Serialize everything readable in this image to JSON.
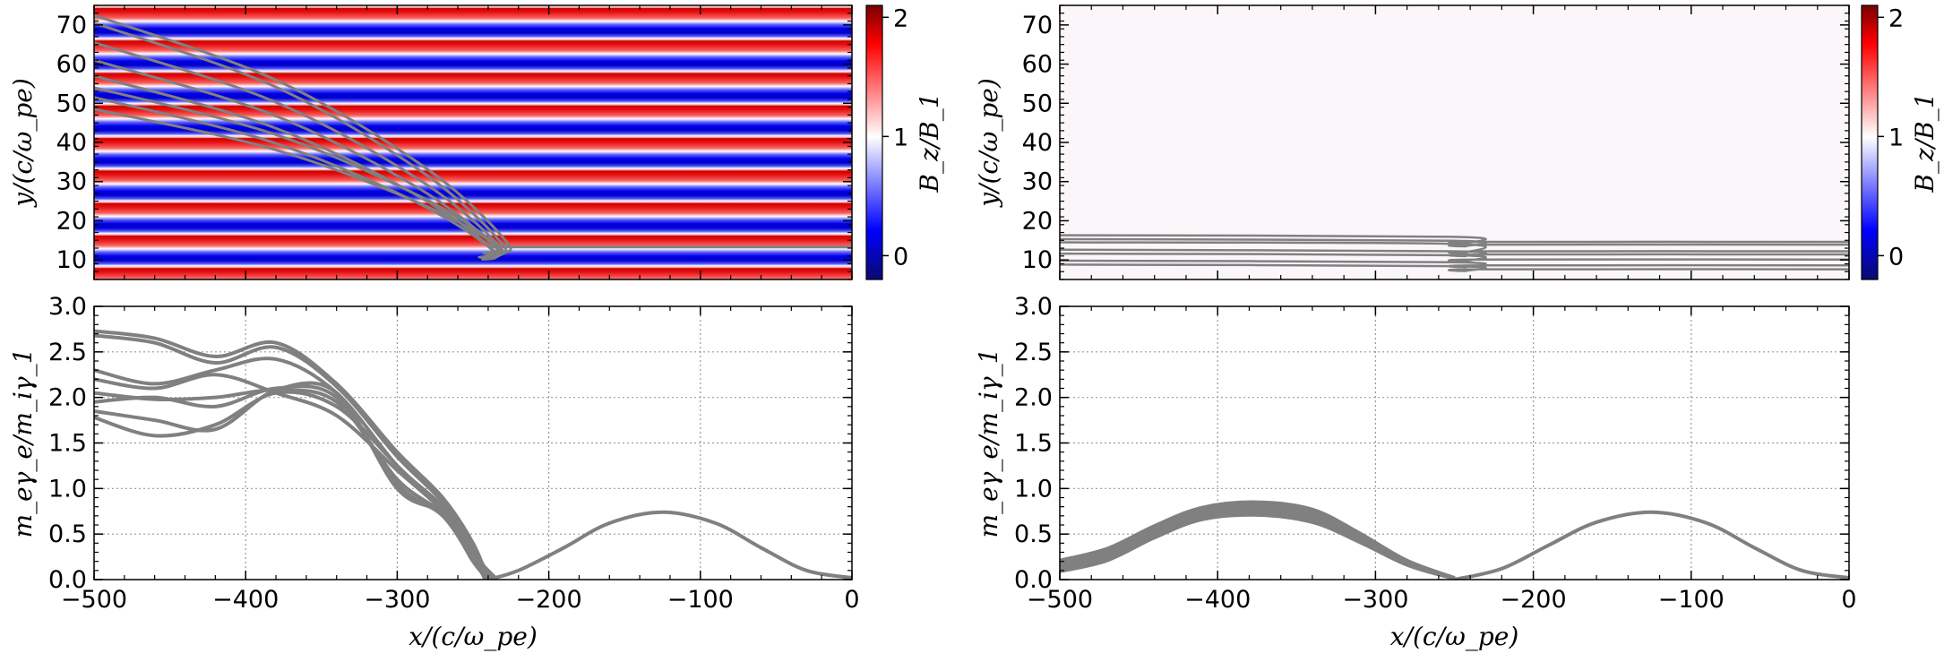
{
  "colors": {
    "trajectory": "#808080",
    "grid": "#999999",
    "axis": "#000000"
  },
  "colorbar": {
    "label": "B_z/B_1",
    "ticks": [
      "0",
      "1",
      "2"
    ],
    "range": [
      -0.2,
      2.1
    ],
    "colors": [
      "#0a0a70",
      "#0000ff",
      "#ffffff",
      "#ff0000",
      "#7a0000"
    ]
  },
  "chart_data": [
    {
      "id": "top-left",
      "type": "heatmap",
      "field": "horizontal stripes of B_z/B_1 alternating between ~0 (blue) and ~2 (red)",
      "xlim": [
        -500,
        0
      ],
      "ylim": [
        5,
        75
      ],
      "xticks": [
        -500,
        -400,
        -300,
        -200,
        -100,
        0
      ],
      "yticks": [
        10,
        20,
        30,
        40,
        50,
        60,
        70
      ],
      "ytick_labels": [
        "10",
        "20",
        "30",
        "40",
        "50",
        "60",
        "70"
      ],
      "ylabel": "y/(c/ω_pe)",
      "stripe_period": 8.3,
      "stripe_center": 66,
      "trajectories": [
        {
          "start": [
            -500,
            72.5
          ],
          "end": [
            -232,
            13
          ]
        },
        {
          "start": [
            -500,
            70.5
          ],
          "end": [
            -235,
            12.5
          ]
        },
        {
          "start": [
            -500,
            65.5
          ],
          "end": [
            -237,
            12
          ]
        },
        {
          "start": [
            -500,
            61
          ],
          "end": [
            -239,
            11.5
          ]
        },
        {
          "start": [
            -500,
            57
          ],
          "end": [
            -241,
            11
          ]
        },
        {
          "start": [
            -500,
            54
          ],
          "end": [
            -238,
            12
          ]
        },
        {
          "start": [
            -500,
            51.5
          ],
          "end": [
            -243,
            11.5
          ]
        },
        {
          "start": [
            -500,
            48.5
          ],
          "end": [
            -240,
            12.5
          ]
        }
      ],
      "tail_y": 13.3
    },
    {
      "id": "top-right",
      "type": "heatmap",
      "field": "uniform B_z/B_1 ≈ 1",
      "xlim": [
        -500,
        0
      ],
      "ylim": [
        5,
        75
      ],
      "xticks": [
        -500,
        -400,
        -300,
        -200,
        -100,
        0
      ],
      "yticks": [
        10,
        20,
        30,
        40,
        50,
        60,
        70
      ],
      "ytick_labels": [
        "10",
        "20",
        "30",
        "40",
        "50",
        "60",
        "70"
      ],
      "ylabel": "y/(c/ω_pe)",
      "trajectories_y_start": [
        16.3,
        15.3,
        14.5,
        12.6,
        11.6,
        9.8,
        8.8
      ],
      "trajectories_y_end": [
        14.6,
        13.9,
        12.2,
        11.4,
        10.1,
        8.6,
        7.6
      ],
      "kink_x": -245
    },
    {
      "id": "bottom-left",
      "type": "line",
      "xlim": [
        -500,
        0
      ],
      "ylim": [
        0,
        3
      ],
      "xticks": [
        -500,
        -400,
        -300,
        -200,
        -100,
        0
      ],
      "xtick_labels": [
        "−500",
        "−400",
        "−300",
        "−200",
        "−100",
        "0"
      ],
      "yticks": [
        0,
        0.5,
        1,
        1.5,
        2,
        2.5,
        3
      ],
      "ytick_labels": [
        "0.0",
        "0.5",
        "1.0",
        "1.5",
        "2.0",
        "2.5",
        "3.0"
      ],
      "xlabel": "x/(c/ω_pe)",
      "ylabel": "m_eγ_e/m_iγ_1",
      "series": [
        {
          "name": "p1",
          "x": [
            -500,
            -460,
            -420,
            -380,
            -340,
            -300,
            -270,
            -250,
            -240
          ],
          "y": [
            2.73,
            2.65,
            2.45,
            2.6,
            2.15,
            1.4,
            0.9,
            0.4,
            0.0
          ]
        },
        {
          "name": "p2",
          "x": [
            -500,
            -460,
            -420,
            -380,
            -340,
            -300,
            -270,
            -250,
            -238
          ],
          "y": [
            2.68,
            2.6,
            2.38,
            2.55,
            2.12,
            1.35,
            0.85,
            0.35,
            0.0
          ]
        },
        {
          "name": "p3",
          "x": [
            -500,
            -460,
            -420,
            -380,
            -340,
            -300,
            -270,
            -250,
            -236
          ],
          "y": [
            2.3,
            2.15,
            2.3,
            2.42,
            2.05,
            1.25,
            0.8,
            0.3,
            0.0
          ]
        },
        {
          "name": "p4",
          "x": [
            -500,
            -460,
            -420,
            -380,
            -340,
            -300,
            -270,
            -250,
            -234
          ],
          "y": [
            2.2,
            2.1,
            2.25,
            2.05,
            1.8,
            1.2,
            0.75,
            0.28,
            0.0
          ]
        },
        {
          "name": "p5",
          "x": [
            -500,
            -460,
            -420,
            -380,
            -340,
            -300,
            -270,
            -250,
            -236
          ],
          "y": [
            2.05,
            1.98,
            2.0,
            2.08,
            1.95,
            1.1,
            0.72,
            0.25,
            0.0
          ]
        },
        {
          "name": "p6",
          "x": [
            -500,
            -460,
            -420,
            -380,
            -340,
            -300,
            -270,
            -250,
            -238
          ],
          "y": [
            1.95,
            2.0,
            1.9,
            2.1,
            2.0,
            1.05,
            0.7,
            0.22,
            0.0
          ]
        },
        {
          "name": "p7",
          "x": [
            -500,
            -460,
            -420,
            -380,
            -340,
            -300,
            -270,
            -250,
            -240
          ],
          "y": [
            1.85,
            1.75,
            1.65,
            2.08,
            2.05,
            1.0,
            0.72,
            0.2,
            0.0
          ]
        },
        {
          "name": "p8",
          "x": [
            -500,
            -460,
            -420,
            -380,
            -340,
            -300,
            -270,
            -250,
            -242
          ],
          "y": [
            1.78,
            1.58,
            1.7,
            2.05,
            1.9,
            1.25,
            0.75,
            0.25,
            0.0
          ]
        },
        {
          "name": "shared-tail",
          "x": [
            -240,
            -220,
            -190,
            -160,
            -125,
            -90,
            -60,
            -30,
            0
          ],
          "y": [
            0.0,
            0.1,
            0.35,
            0.62,
            0.74,
            0.62,
            0.35,
            0.1,
            0.02
          ]
        }
      ]
    },
    {
      "id": "bottom-right",
      "type": "line",
      "xlim": [
        -500,
        0
      ],
      "ylim": [
        0,
        3
      ],
      "xticks": [
        -500,
        -400,
        -300,
        -200,
        -100,
        0
      ],
      "xtick_labels": [
        "−500",
        "−400",
        "−300",
        "−200",
        "−100",
        "0"
      ],
      "yticks": [
        0,
        0.5,
        1,
        1.5,
        2,
        2.5,
        3
      ],
      "ytick_labels": [
        "0.0",
        "0.5",
        "1.0",
        "1.5",
        "2.0",
        "2.5",
        "3.0"
      ],
      "xlabel": "x/(c/ω_pe)",
      "ylabel": "m_eγ_e/m_iγ_1",
      "band_upper": {
        "x": [
          -500,
          -470,
          -440,
          -410,
          -375,
          -340,
          -310,
          -280,
          -250
        ],
        "y": [
          0.22,
          0.35,
          0.6,
          0.8,
          0.86,
          0.78,
          0.52,
          0.22,
          0.03
        ]
      },
      "band_lower": {
        "x": [
          -500,
          -470,
          -440,
          -410,
          -375,
          -340,
          -310,
          -280,
          -250
        ],
        "y": [
          0.08,
          0.2,
          0.45,
          0.65,
          0.7,
          0.62,
          0.4,
          0.15,
          0.0
        ]
      },
      "series": [
        {
          "name": "shared-tail",
          "x": [
            -250,
            -220,
            -190,
            -160,
            -125,
            -90,
            -60,
            -30,
            0
          ],
          "y": [
            0.0,
            0.12,
            0.38,
            0.63,
            0.74,
            0.62,
            0.35,
            0.1,
            0.02
          ]
        }
      ]
    }
  ]
}
